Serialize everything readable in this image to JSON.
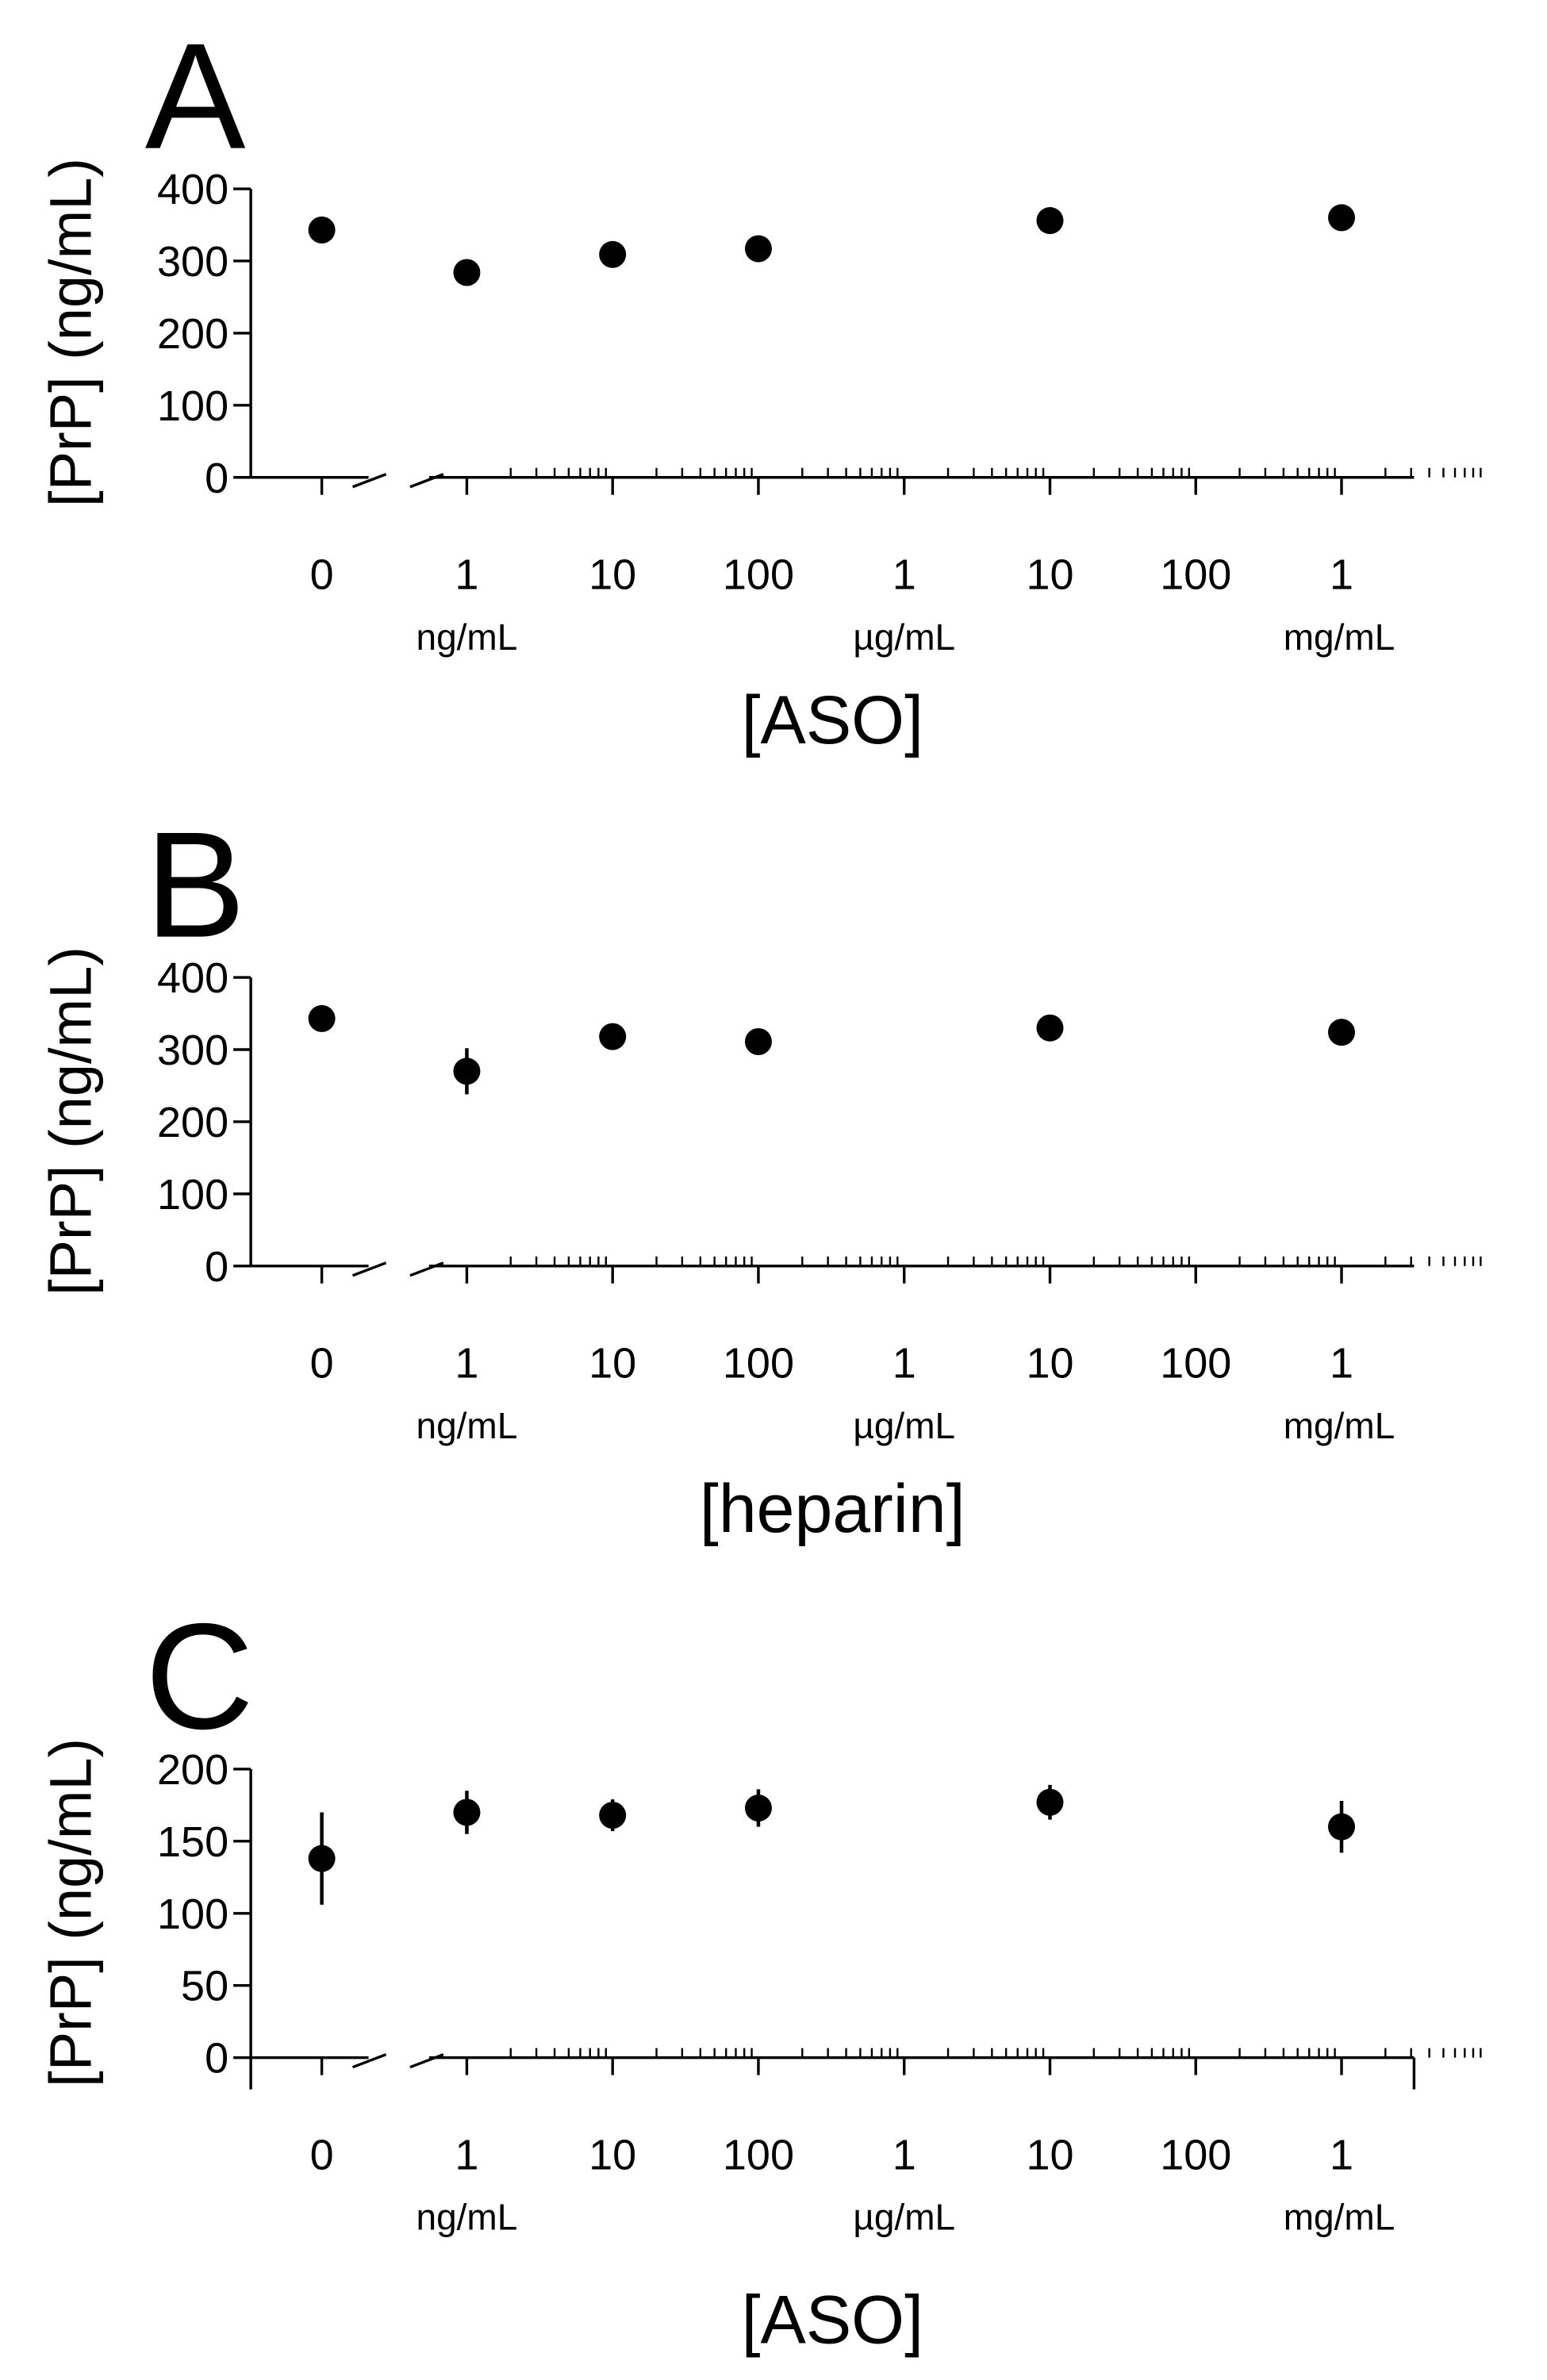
{
  "chart_data": [
    {
      "panel_label": "A",
      "type": "scatter",
      "ylabel": "[PrP] (ng/mL)",
      "xlabel": "[ASO]",
      "ylim": [
        0,
        400
      ],
      "yticks": [
        "0",
        "100",
        "200",
        "300",
        "400"
      ],
      "x_scale": "log (ng/mL) with break after 0",
      "x_tick_labels": [
        "0",
        "1",
        "10",
        "100",
        "1",
        "10",
        "100",
        "1"
      ],
      "x_unit_labels": [
        "ng/mL",
        "µg/mL",
        "mg/mL"
      ],
      "x": [
        "0",
        "1 ng/mL",
        "10 ng/mL",
        "100 ng/mL",
        "10 µg/mL",
        "1 mg/mL"
      ],
      "values": [
        343,
        284,
        309,
        317,
        356,
        360
      ],
      "errors": [
        0,
        0,
        0,
        0,
        0,
        0
      ],
      "marker_color": "#000000",
      "grid": false,
      "legend": false
    },
    {
      "panel_label": "B",
      "type": "scatter",
      "ylabel": "[PrP] (ng/mL)",
      "xlabel": "[heparin]",
      "ylim": [
        0,
        400
      ],
      "yticks": [
        "0",
        "100",
        "200",
        "300",
        "400"
      ],
      "x_scale": "log (ng/mL) with break after 0",
      "x_tick_labels": [
        "0",
        "1",
        "10",
        "100",
        "1",
        "10",
        "100",
        "1"
      ],
      "x_unit_labels": [
        "ng/mL",
        "µg/mL",
        "mg/mL"
      ],
      "x": [
        "0",
        "1 ng/mL",
        "10 ng/mL",
        "100 ng/mL",
        "10 µg/mL",
        "1 mg/mL"
      ],
      "values": [
        343,
        270,
        318,
        311,
        330,
        324
      ],
      "errors": [
        0,
        32,
        0,
        0,
        0,
        0
      ],
      "marker_color": "#000000",
      "grid": false,
      "legend": false
    },
    {
      "panel_label": "C",
      "type": "scatter",
      "ylabel": "[PrP] (ng/mL)",
      "xlabel": "[ASO]",
      "ylim": [
        0,
        200
      ],
      "yticks": [
        "0",
        "50",
        "100",
        "150",
        "200"
      ],
      "x_scale": "log (ng/mL) with break after 0",
      "x_tick_labels": [
        "0",
        "1",
        "10",
        "100",
        "1",
        "10",
        "100",
        "1"
      ],
      "x_unit_labels": [
        "ng/mL",
        "µg/mL",
        "mg/mL"
      ],
      "x": [
        "0",
        "1 ng/mL",
        "10 ng/mL",
        "100 ng/mL",
        "10 µg/mL",
        "1 mg/mL"
      ],
      "values": [
        138,
        170,
        168,
        173,
        177,
        160
      ],
      "errors": [
        32,
        15,
        11,
        13,
        12,
        18
      ],
      "marker_color": "#000000",
      "grid": false,
      "legend": false
    }
  ]
}
